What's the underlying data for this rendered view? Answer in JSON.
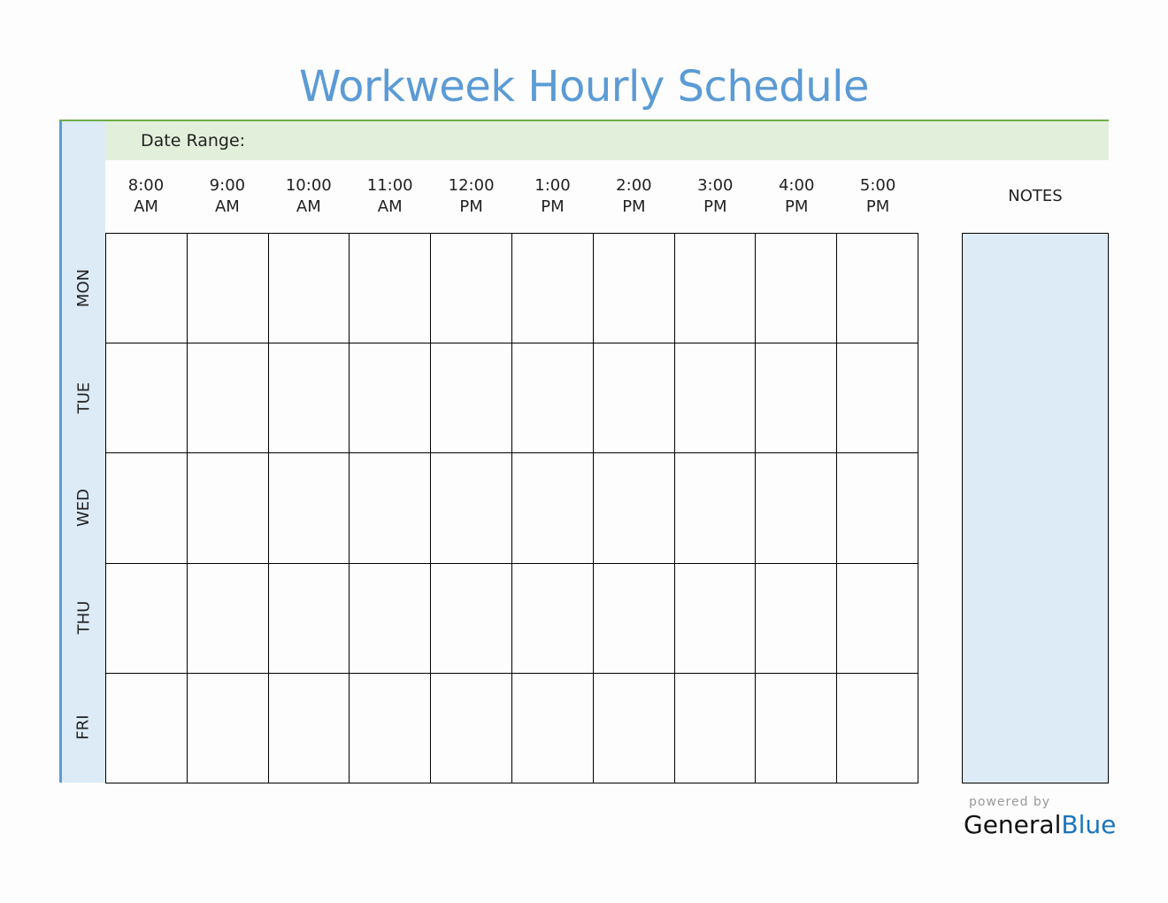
{
  "title": "Workweek Hourly Schedule",
  "date_range_label": "Date Range:",
  "times": [
    [
      "8:00",
      "AM"
    ],
    [
      "9:00",
      "AM"
    ],
    [
      "10:00",
      "AM"
    ],
    [
      "11:00",
      "AM"
    ],
    [
      "12:00",
      "PM"
    ],
    [
      "1:00",
      "PM"
    ],
    [
      "2:00",
      "PM"
    ],
    [
      "3:00",
      "PM"
    ],
    [
      "4:00",
      "PM"
    ],
    [
      "5:00",
      "PM"
    ]
  ],
  "days": [
    "MON",
    "TUE",
    "WED",
    "THU",
    "FRI"
  ],
  "notes_label": "NOTES",
  "footer": {
    "powered_by": "powered by",
    "brand_general": "General",
    "brand_blue": "Blue"
  },
  "colors": {
    "title": "#5b9bd5",
    "band": "#e2efda",
    "band_border": "#70ad47",
    "side": "#ddebf7",
    "brand_blue": "#1b75bc"
  }
}
